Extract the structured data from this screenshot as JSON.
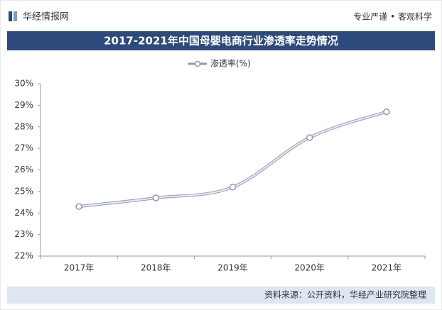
{
  "header": {
    "brand": "华经情报网",
    "slogan": "专业严谨 • 客观科学"
  },
  "chart_data": {
    "type": "line",
    "title": "2017-2021年中国母婴电商行业渗透率走势情况",
    "categories": [
      "2017年",
      "2018年",
      "2019年",
      "2020年",
      "2021年"
    ],
    "series": [
      {
        "name": "渗透率(%)",
        "color": "#a9b4c8",
        "values": [
          24.3,
          24.7,
          25.2,
          27.5,
          28.7
        ]
      }
    ],
    "ylim": [
      22,
      30
    ],
    "yticks": [
      {
        "value": 22,
        "label": "22%"
      },
      {
        "value": 23,
        "label": "23%"
      },
      {
        "value": 24,
        "label": "24%"
      },
      {
        "value": 25,
        "label": "25%"
      },
      {
        "value": 26,
        "label": "26%"
      },
      {
        "value": 27,
        "label": "27%"
      },
      {
        "value": 28,
        "label": "28%"
      },
      {
        "value": 29,
        "label": "29%"
      },
      {
        "value": 30,
        "label": "30%"
      }
    ],
    "legend": "top"
  },
  "footer": {
    "source": "资料来源：公开资料，华经产业研究院整理"
  }
}
